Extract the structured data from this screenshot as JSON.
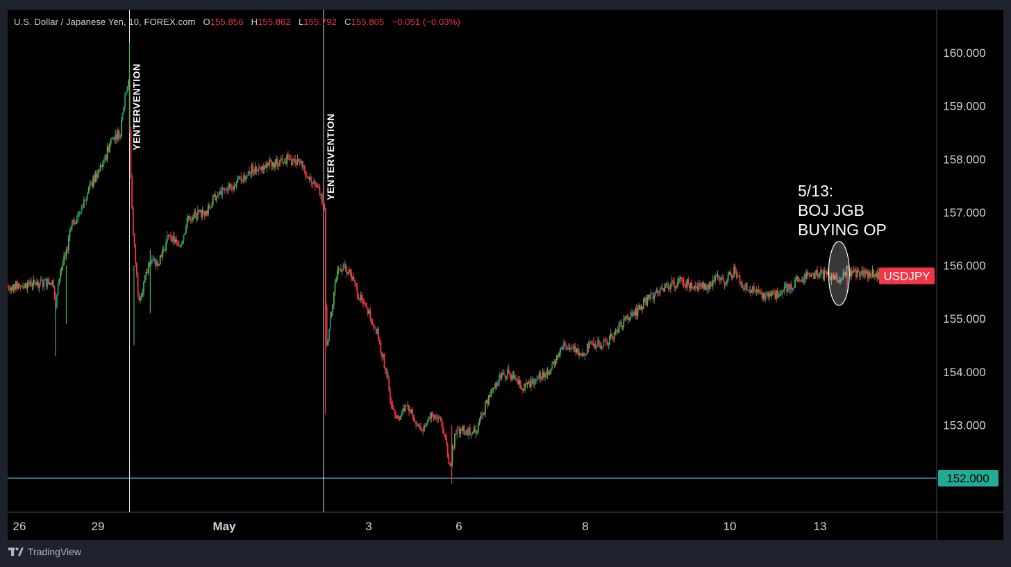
{
  "header": {
    "symbol": "U.S. Dollar / Japanese Yen",
    "interval": "10",
    "source": "FOREX.com",
    "open_label": "O",
    "open": "155.856",
    "high_label": "H",
    "high": "155.862",
    "low_label": "L",
    "low": "155.792",
    "close_label": "C",
    "close": "155.805",
    "change": "−0.051 (−0.03%)"
  },
  "footer": {
    "brand": "TradingView"
  },
  "colors": {
    "background": "#000000",
    "frame": "#1e222d",
    "up": "#089981",
    "up_bright": "#4caf50",
    "down": "#f23645",
    "axis_text": "#d1d4dc",
    "price_tag": "#f23645",
    "level_tag": "#22ab94",
    "level_line": "#5aa9c9"
  },
  "chart_data": {
    "type": "candlestick",
    "symbol_tag": "USDJPY",
    "y_axis": {
      "min": 151.5,
      "max": 160.5,
      "ticks": [
        "160.000",
        "159.000",
        "158.000",
        "157.000",
        "156.000",
        "155.000",
        "154.000",
        "153.000"
      ]
    },
    "x_axis": {
      "labels": [
        "26",
        "29",
        "May",
        "3",
        "6",
        "8",
        "10",
        "13"
      ],
      "positions": [
        0,
        10,
        24,
        40,
        50,
        64,
        80,
        90
      ]
    },
    "horizontal_line": {
      "value": 152.0,
      "label": "152.000"
    },
    "events": [
      {
        "label": "YENTERVENTION",
        "x": 13.5
      },
      {
        "label": "YENTERVENTION",
        "x": 35
      }
    ],
    "annotation": {
      "lines": [
        "5/13:",
        "BOJ JGB",
        "BUYING OP"
      ],
      "x": 92.1,
      "y": 155.85
    },
    "price_path": [
      [
        0,
        155.6
      ],
      [
        5,
        155.7
      ],
      [
        5.3,
        155.2
      ],
      [
        5.8,
        155.9
      ],
      [
        6.5,
        156.2
      ],
      [
        7,
        156.8
      ],
      [
        7.6,
        156.9
      ],
      [
        9.5,
        157.6
      ],
      [
        10.8,
        158.0
      ],
      [
        11.5,
        158.4
      ],
      [
        12.5,
        158.5
      ],
      [
        13,
        159.2
      ],
      [
        13.4,
        159.5
      ],
      [
        13.6,
        157.9
      ],
      [
        13.9,
        156.6
      ],
      [
        14.5,
        155.4
      ],
      [
        15,
        155.6
      ],
      [
        16,
        156.2
      ],
      [
        16.5,
        156.0
      ],
      [
        17.2,
        156.3
      ],
      [
        18,
        156.6
      ],
      [
        19,
        156.3
      ],
      [
        20,
        156.9
      ],
      [
        22,
        157.0
      ],
      [
        23,
        157.3
      ],
      [
        25,
        157.5
      ],
      [
        27,
        157.8
      ],
      [
        29,
        157.9
      ],
      [
        31,
        158.0
      ],
      [
        32.5,
        157.9
      ],
      [
        33.5,
        157.6
      ],
      [
        34.5,
        157.4
      ],
      [
        35.1,
        157.0
      ],
      [
        35.3,
        154.4
      ],
      [
        35.8,
        155.1
      ],
      [
        36.5,
        155.9
      ],
      [
        37.2,
        156.0
      ],
      [
        38,
        155.8
      ],
      [
        39,
        155.4
      ],
      [
        40,
        155.1
      ],
      [
        41,
        154.7
      ],
      [
        41.8,
        154.1
      ],
      [
        42.4,
        153.5
      ],
      [
        43.3,
        153.1
      ],
      [
        44.3,
        153.4
      ],
      [
        45,
        153.1
      ],
      [
        46,
        152.9
      ],
      [
        47,
        153.2
      ],
      [
        48,
        153.1
      ],
      [
        48.6,
        152.6
      ],
      [
        49,
        152.2
      ],
      [
        49.6,
        152.9
      ],
      [
        51,
        152.9
      ],
      [
        52,
        152.9
      ],
      [
        53,
        153.4
      ],
      [
        53.8,
        153.7
      ],
      [
        54.5,
        153.9
      ],
      [
        55.5,
        154.0
      ],
      [
        56.3,
        153.8
      ],
      [
        57.3,
        153.7
      ],
      [
        58.5,
        153.9
      ],
      [
        60,
        154.0
      ],
      [
        61.5,
        154.5
      ],
      [
        63,
        154.4
      ],
      [
        63.8,
        154.3
      ],
      [
        64.5,
        154.6
      ],
      [
        65.5,
        154.5
      ],
      [
        66.5,
        154.6
      ],
      [
        68,
        154.9
      ],
      [
        69.5,
        155.1
      ],
      [
        70.5,
        155.3
      ],
      [
        72,
        155.5
      ],
      [
        73,
        155.6
      ],
      [
        74.5,
        155.7
      ],
      [
        76,
        155.6
      ],
      [
        77.5,
        155.6
      ],
      [
        78.5,
        155.8
      ],
      [
        79.5,
        155.7
      ],
      [
        80.5,
        155.9
      ],
      [
        81.5,
        155.6
      ],
      [
        83,
        155.5
      ],
      [
        84.5,
        155.4
      ],
      [
        85.5,
        155.5
      ],
      [
        86.5,
        155.6
      ],
      [
        87.5,
        155.7
      ],
      [
        88.5,
        155.8
      ],
      [
        90,
        155.85
      ],
      [
        91,
        155.8
      ],
      [
        92,
        155.75
      ],
      [
        93,
        155.9
      ],
      [
        94,
        155.85
      ],
      [
        95.5,
        155.85
      ],
      [
        96.5,
        155.81
      ]
    ],
    "last_price": {
      "value": 155.805,
      "label": "USDJPY"
    }
  }
}
